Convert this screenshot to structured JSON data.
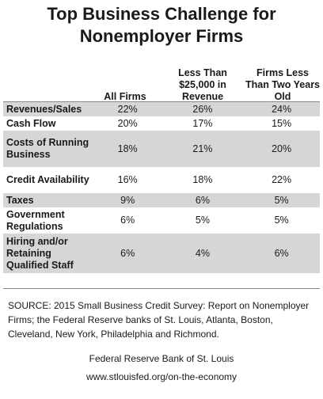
{
  "chart_data": {
    "type": "table",
    "title": "Top Business Challenge for Nonemployer Firms",
    "columns": [
      "",
      "All Firms",
      "Less Than $25,000 in Revenue",
      "Firms Less Than Two Years Old"
    ],
    "rows": [
      {
        "label": "Revenues/Sales",
        "values": [
          "22%",
          "26%",
          "24%"
        ]
      },
      {
        "label": "Cash Flow",
        "values": [
          "20%",
          "17%",
          "15%"
        ]
      },
      {
        "label": "Costs of Running Business",
        "values": [
          "18%",
          "21%",
          "20%"
        ]
      },
      {
        "label": "Credit Availability",
        "values": [
          "16%",
          "18%",
          "22%"
        ]
      },
      {
        "label": "Taxes",
        "values": [
          "9%",
          "6%",
          "5%"
        ]
      },
      {
        "label": "Government Regulations",
        "values": [
          "6%",
          "5%",
          "5%"
        ]
      },
      {
        "label": "Hiring and/or Retaining Qualified Staff",
        "values": [
          "6%",
          "4%",
          "6%"
        ]
      }
    ]
  },
  "source": "SOURCE: 2015 Small Business Credit Survey: Report on Nonemployer Firms; the Federal Reserve banks of St. Louis, Atlanta, Boston, Cleveland, New York, Philadelphia and Richmond.",
  "footer": {
    "org": "Federal Reserve Bank of St. Louis",
    "url": "www.stlouisfed.org/on-the-economy"
  },
  "colors": {
    "row_shade": "#d6d6d6",
    "rule": "#8a8a8a",
    "text": "#1a1a1a"
  }
}
